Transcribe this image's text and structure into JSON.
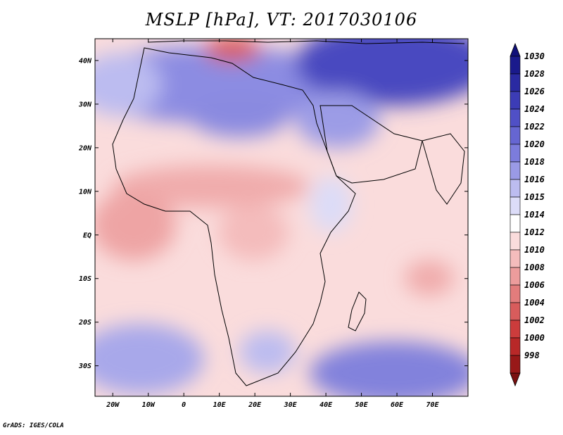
{
  "title": "MSLP [hPa], VT: 2017030106",
  "credit": "GrADS: IGES/COLA",
  "map": {
    "projection": "lat-lon",
    "lon_range": [
      -25,
      80
    ],
    "lat_range": [
      -37,
      45
    ],
    "lon_ticks": [
      {
        "value": -20,
        "label": "20W"
      },
      {
        "value": -10,
        "label": "10W"
      },
      {
        "value": 0,
        "label": "0"
      },
      {
        "value": 10,
        "label": "10E"
      },
      {
        "value": 20,
        "label": "20E"
      },
      {
        "value": 30,
        "label": "30E"
      },
      {
        "value": 40,
        "label": "40E"
      },
      {
        "value": 50,
        "label": "50E"
      },
      {
        "value": 60,
        "label": "60E"
      },
      {
        "value": 70,
        "label": "70E"
      }
    ],
    "lat_ticks": [
      {
        "value": 40,
        "label": "40N"
      },
      {
        "value": 30,
        "label": "30N"
      },
      {
        "value": 20,
        "label": "20N"
      },
      {
        "value": 10,
        "label": "10N"
      },
      {
        "value": 0,
        "label": "EQ"
      },
      {
        "value": -10,
        "label": "10S"
      },
      {
        "value": -20,
        "label": "20S"
      },
      {
        "value": -30,
        "label": "30S"
      }
    ]
  },
  "colorbar": {
    "levels": [
      {
        "label": "1030",
        "color": "#1a1a8c"
      },
      {
        "label": "1028",
        "color": "#2a2aa2"
      },
      {
        "label": "1026",
        "color": "#3c3cb6"
      },
      {
        "label": "1024",
        "color": "#5050c6"
      },
      {
        "label": "1022",
        "color": "#6666d2"
      },
      {
        "label": "1020",
        "color": "#7c7cdc"
      },
      {
        "label": "1018",
        "color": "#9a9ae6"
      },
      {
        "label": "1016",
        "color": "#bcbcf0"
      },
      {
        "label": "1015",
        "color": "#dcdcf8"
      },
      {
        "label": "1014",
        "color": "#ffffff"
      },
      {
        "label": "1012",
        "color": "#fadcdc"
      },
      {
        "label": "1010",
        "color": "#f4bcbc"
      },
      {
        "label": "1008",
        "color": "#ec9c9c"
      },
      {
        "label": "1006",
        "color": "#e27c7c"
      },
      {
        "label": "1004",
        "color": "#d85c5c"
      },
      {
        "label": "1002",
        "color": "#cc3c3c"
      },
      {
        "label": "1000",
        "color": "#b82828"
      },
      {
        "label": "998",
        "color": "#981818"
      }
    ],
    "top_color": "#10107a",
    "bottom_color": "#7a1010"
  }
}
